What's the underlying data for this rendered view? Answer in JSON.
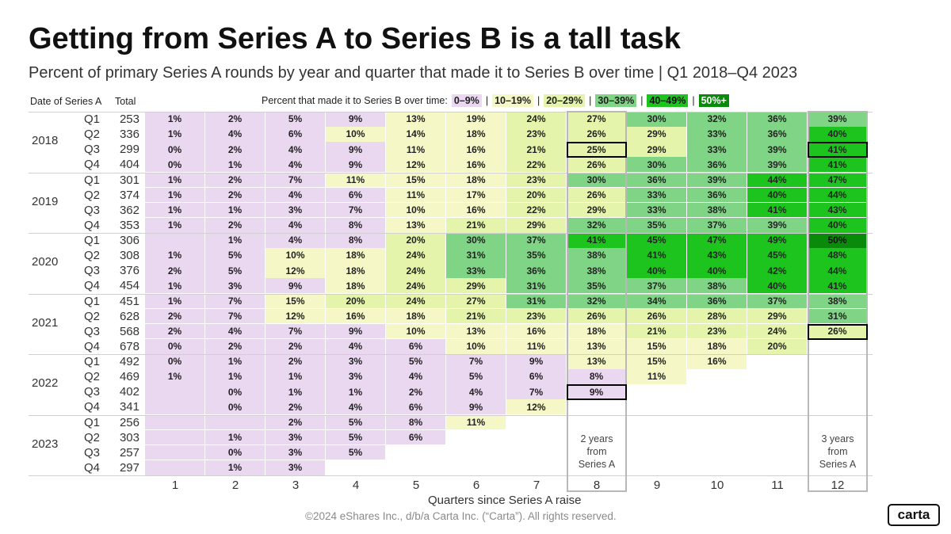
{
  "title": "Getting from Series A to Series B is a tall task",
  "subtitle": "Percent of primary Series A rounds by year and quarter that made it to Series B over time | Q1 2018–Q4 2023",
  "headers": {
    "date": "Date of Series A",
    "total": "Total"
  },
  "legend": {
    "label": "Percent that made it to Series B over time:",
    "separator": "|",
    "bins": [
      {
        "label": "0–9%",
        "color": "#ead7f0"
      },
      {
        "label": "10–19%",
        "color": "#f5f8c6"
      },
      {
        "label": "20–29%",
        "color": "#e4f5ab"
      },
      {
        "label": "30–39%",
        "color": "#80d485"
      },
      {
        "label": "40–49%",
        "color": "#1dc41d"
      },
      {
        "label": "50%+",
        "color": "#0a8a0a"
      }
    ]
  },
  "chart_data": {
    "type": "heatmap",
    "x": [
      1,
      2,
      3,
      4,
      5,
      6,
      7,
      8,
      9,
      10,
      11,
      12
    ],
    "xlabel": "Quarters since Series A raise",
    "years": [
      "2018",
      "2019",
      "2020",
      "2021",
      "2022",
      "2023"
    ],
    "quarters": [
      "Q1",
      "Q2",
      "Q3",
      "Q4"
    ],
    "rows": [
      {
        "year": "2018",
        "quarter": "Q1",
        "total": "253",
        "values": [
          "1%",
          "2%",
          "5%",
          "9%",
          "13%",
          "19%",
          "24%",
          "27%",
          "30%",
          "32%",
          "36%",
          "39%"
        ]
      },
      {
        "year": "2018",
        "quarter": "Q2",
        "total": "336",
        "values": [
          "1%",
          "4%",
          "6%",
          "10%",
          "14%",
          "18%",
          "23%",
          "26%",
          "29%",
          "33%",
          "36%",
          "40%"
        ]
      },
      {
        "year": "2018",
        "quarter": "Q3",
        "total": "299",
        "values": [
          "0%",
          "2%",
          "4%",
          "9%",
          "11%",
          "16%",
          "21%",
          "25%",
          "29%",
          "33%",
          "39%",
          "41%"
        ]
      },
      {
        "year": "2018",
        "quarter": "Q4",
        "total": "404",
        "values": [
          "0%",
          "1%",
          "4%",
          "9%",
          "12%",
          "16%",
          "22%",
          "26%",
          "30%",
          "36%",
          "39%",
          "41%"
        ]
      },
      {
        "year": "2019",
        "quarter": "Q1",
        "total": "301",
        "values": [
          "1%",
          "2%",
          "7%",
          "11%",
          "15%",
          "18%",
          "23%",
          "30%",
          "36%",
          "39%",
          "44%",
          "47%"
        ]
      },
      {
        "year": "2019",
        "quarter": "Q2",
        "total": "374",
        "values": [
          "1%",
          "2%",
          "4%",
          "6%",
          "11%",
          "17%",
          "20%",
          "26%",
          "33%",
          "36%",
          "40%",
          "44%"
        ]
      },
      {
        "year": "2019",
        "quarter": "Q3",
        "total": "362",
        "values": [
          "1%",
          "1%",
          "3%",
          "7%",
          "10%",
          "16%",
          "22%",
          "29%",
          "33%",
          "38%",
          "41%",
          "43%"
        ]
      },
      {
        "year": "2019",
        "quarter": "Q4",
        "total": "353",
        "values": [
          "1%",
          "2%",
          "4%",
          "8%",
          "13%",
          "21%",
          "29%",
          "32%",
          "35%",
          "37%",
          "39%",
          "40%"
        ]
      },
      {
        "year": "2020",
        "quarter": "Q1",
        "total": "306",
        "values": [
          "",
          "1%",
          "4%",
          "8%",
          "20%",
          "30%",
          "37%",
          "41%",
          "45%",
          "47%",
          "49%",
          "50%"
        ]
      },
      {
        "year": "2020",
        "quarter": "Q2",
        "total": "308",
        "values": [
          "1%",
          "5%",
          "10%",
          "18%",
          "24%",
          "31%",
          "35%",
          "38%",
          "41%",
          "43%",
          "45%",
          "48%"
        ]
      },
      {
        "year": "2020",
        "quarter": "Q3",
        "total": "376",
        "values": [
          "2%",
          "5%",
          "12%",
          "18%",
          "24%",
          "33%",
          "36%",
          "38%",
          "40%",
          "40%",
          "42%",
          "44%"
        ]
      },
      {
        "year": "2020",
        "quarter": "Q4",
        "total": "454",
        "values": [
          "1%",
          "3%",
          "9%",
          "18%",
          "24%",
          "29%",
          "31%",
          "35%",
          "37%",
          "38%",
          "40%",
          "41%"
        ]
      },
      {
        "year": "2021",
        "quarter": "Q1",
        "total": "451",
        "values": [
          "1%",
          "7%",
          "15%",
          "20%",
          "24%",
          "27%",
          "31%",
          "32%",
          "34%",
          "36%",
          "37%",
          "38%"
        ]
      },
      {
        "year": "2021",
        "quarter": "Q2",
        "total": "628",
        "values": [
          "2%",
          "7%",
          "12%",
          "16%",
          "18%",
          "21%",
          "23%",
          "26%",
          "26%",
          "28%",
          "29%",
          "31%"
        ]
      },
      {
        "year": "2021",
        "quarter": "Q3",
        "total": "568",
        "values": [
          "2%",
          "4%",
          "7%",
          "9%",
          "10%",
          "13%",
          "16%",
          "18%",
          "21%",
          "23%",
          "24%",
          "26%"
        ]
      },
      {
        "year": "2021",
        "quarter": "Q4",
        "total": "678",
        "values": [
          "0%",
          "2%",
          "2%",
          "4%",
          "6%",
          "10%",
          "11%",
          "13%",
          "15%",
          "18%",
          "20%",
          null
        ]
      },
      {
        "year": "2022",
        "quarter": "Q1",
        "total": "492",
        "values": [
          "0%",
          "1%",
          "2%",
          "3%",
          "5%",
          "7%",
          "9%",
          "13%",
          "15%",
          "16%",
          null,
          null
        ]
      },
      {
        "year": "2022",
        "quarter": "Q2",
        "total": "469",
        "values": [
          "1%",
          "1%",
          "1%",
          "3%",
          "4%",
          "5%",
          "6%",
          "8%",
          "11%",
          null,
          null,
          null
        ]
      },
      {
        "year": "2022",
        "quarter": "Q3",
        "total": "402",
        "values": [
          "",
          "0%",
          "1%",
          "1%",
          "2%",
          "4%",
          "7%",
          "9%",
          null,
          null,
          null,
          null
        ]
      },
      {
        "year": "2022",
        "quarter": "Q4",
        "total": "341",
        "values": [
          "",
          "0%",
          "2%",
          "4%",
          "6%",
          "9%",
          "12%",
          null,
          null,
          null,
          null,
          null
        ]
      },
      {
        "year": "2023",
        "quarter": "Q1",
        "total": "256",
        "values": [
          "",
          "",
          "2%",
          "5%",
          "8%",
          "11%",
          null,
          null,
          null,
          null,
          null,
          null
        ]
      },
      {
        "year": "2023",
        "quarter": "Q2",
        "total": "303",
        "values": [
          "",
          "1%",
          "3%",
          "5%",
          "6%",
          null,
          null,
          null,
          null,
          null,
          null,
          null
        ]
      },
      {
        "year": "2023",
        "quarter": "Q3",
        "total": "257",
        "values": [
          "",
          "0%",
          "3%",
          "5%",
          null,
          null,
          null,
          null,
          null,
          null,
          null,
          null
        ]
      },
      {
        "year": "2023",
        "quarter": "Q4",
        "total": "297",
        "values": [
          "",
          "1%",
          "3%",
          null,
          null,
          null,
          null,
          null,
          null,
          null,
          null,
          null
        ]
      }
    ],
    "highlighted_columns": [
      8,
      12
    ],
    "highlighted_cells": [
      {
        "year": "2018",
        "quarter": "Q3",
        "column": 8
      },
      {
        "year": "2018",
        "quarter": "Q3",
        "column": 12
      },
      {
        "year": "2021",
        "quarter": "Q3",
        "column": 12
      },
      {
        "year": "2022",
        "quarter": "Q3",
        "column": 8
      }
    ],
    "annotations": [
      {
        "column": 8,
        "lines": [
          "2 years",
          "from",
          "Series A"
        ]
      },
      {
        "column": 12,
        "lines": [
          "3 years",
          "from",
          "Series A"
        ]
      }
    ]
  },
  "footer": "©2024 eShares Inc., d/b/a Carta Inc. (“Carta”). All rights reserved.",
  "logo": "carta"
}
